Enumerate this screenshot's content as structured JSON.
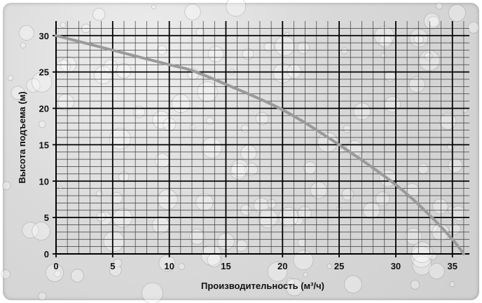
{
  "chart_data": {
    "type": "line",
    "title": "",
    "xlabel": "Производительность (м³/ч)",
    "ylabel": "Высота подъема (м)",
    "xlim": [
      0,
      36.5
    ],
    "ylim": [
      0,
      32
    ],
    "x_ticks": [
      0,
      5,
      10,
      15,
      20,
      25,
      30,
      35
    ],
    "y_ticks": [
      0,
      5,
      10,
      15,
      20,
      25,
      30
    ],
    "x_tick_labels": [
      "0",
      "5",
      "10",
      "15",
      "20",
      "25",
      "30",
      "35"
    ],
    "y_tick_labels": [
      "0",
      "5",
      "10",
      "15",
      "20",
      "25",
      "30"
    ],
    "grid": true,
    "legend": "none",
    "series": [
      {
        "color": "#9a9a9a",
        "x": [
          0,
          5,
          10,
          12,
          15,
          20,
          25,
          30,
          33,
          35,
          36
        ],
        "y": [
          30,
          28,
          26,
          25.2,
          23.3,
          19.8,
          15,
          9.5,
          5.3,
          2,
          0
        ]
      }
    ],
    "colors": {
      "major_grid": "#000000",
      "minor_grid": "#3a3a3a",
      "curve": "#9a9a9a",
      "background": "#d9d9d9"
    }
  }
}
